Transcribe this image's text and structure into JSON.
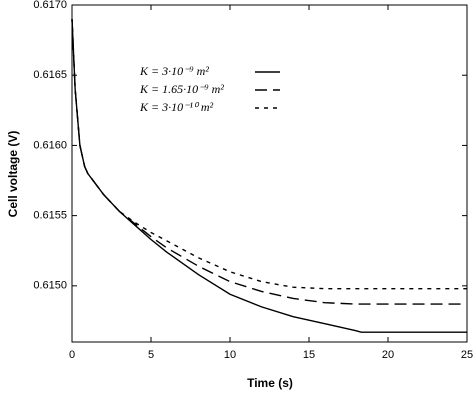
{
  "chart_data": {
    "type": "line",
    "xlabel": "Time (s)",
    "ylabel": "Cell voltage (V)",
    "x": [
      0,
      0.2,
      0.5,
      0.8,
      1,
      2,
      3,
      4,
      5,
      6,
      8,
      10,
      12,
      14,
      16,
      18,
      18.3,
      20,
      25
    ],
    "series": [
      {
        "name": "K = 3·10⁻⁹ m²",
        "color": "#000000",
        "dash": "solid",
        "values": [
          0.6169,
          0.6164,
          0.616,
          0.61585,
          0.6158,
          0.61565,
          0.61553,
          0.61543,
          0.61533,
          0.61524,
          0.61508,
          0.61494,
          0.61485,
          0.61478,
          0.61473,
          0.61468,
          0.61467,
          0.61467,
          0.61467
        ]
      },
      {
        "name": "K = 1.65·10⁻⁹ m²",
        "color": "#000000",
        "dash": "dashed",
        "values": [
          0.6169,
          0.6164,
          0.616,
          0.61585,
          0.6158,
          0.61565,
          0.61553,
          0.61544,
          0.61535,
          0.61527,
          0.61514,
          0.61503,
          0.61496,
          0.61491,
          0.61488,
          0.61487,
          0.61487,
          0.61487,
          0.61487
        ]
      },
      {
        "name": "K = 3·10⁻¹⁰ m²",
        "color": "#000000",
        "dash": "dotted",
        "values": [
          0.6169,
          0.6164,
          0.616,
          0.61585,
          0.6158,
          0.61565,
          0.61553,
          0.61545,
          0.61538,
          0.61532,
          0.6152,
          0.6151,
          0.61503,
          0.61499,
          0.61498,
          0.61498,
          0.61498,
          0.61498,
          0.61498
        ]
      }
    ],
    "xlim": [
      0,
      25
    ],
    "xticks": [
      0,
      5,
      10,
      15,
      20,
      25
    ],
    "ylim": [
      0.6146,
      0.617
    ],
    "yticks": [
      {
        "value": 0.615,
        "label": "0.6150"
      },
      0.6155,
      {
        "value": 0.616,
        "label": "0.6160"
      },
      0.6165,
      {
        "value": 0.617,
        "label": "0.6170"
      }
    ],
    "legend": "upper center"
  }
}
